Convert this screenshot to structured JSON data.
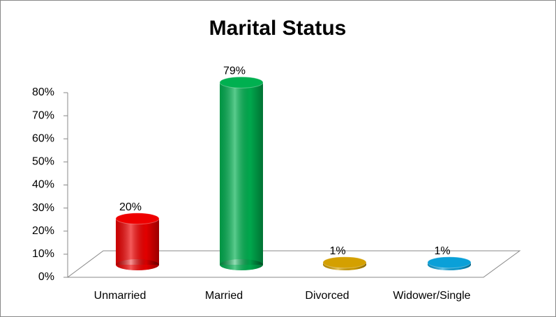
{
  "chart_data": {
    "type": "bar3d",
    "title": "Marital Status",
    "categories": [
      "Unmarried",
      "Married",
      "Divorced",
      "Widower/Single"
    ],
    "values": [
      20,
      79,
      1,
      1
    ],
    "value_labels": [
      "20%",
      "79%",
      "1%",
      "1%"
    ],
    "colors": [
      "#ee0000",
      "#00b050",
      "#d4a000",
      "#0aa0d8"
    ],
    "ylim": [
      0,
      80
    ],
    "yticks": [
      {
        "value": 0,
        "label": "0%"
      },
      {
        "value": 10,
        "label": "10%"
      },
      {
        "value": 20,
        "label": "20%"
      },
      {
        "value": 30,
        "label": "30%"
      },
      {
        "value": 40,
        "label": "40%"
      },
      {
        "value": 50,
        "label": "50%"
      },
      {
        "value": 60,
        "label": "60%"
      },
      {
        "value": 70,
        "label": "70%"
      },
      {
        "value": 80,
        "label": "80%"
      }
    ]
  }
}
